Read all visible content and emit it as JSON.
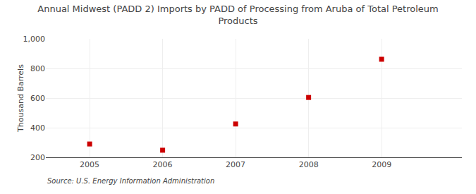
{
  "chart_data": {
    "type": "scatter",
    "title": "Annual Midwest (PADD 2) Imports by PADD of Processing from Aruba of Total Petroleum\nProducts",
    "ylabel": "Thousand Barrels",
    "annotations": [
      "Source: U.S. Energy Information Administration"
    ],
    "x": [
      2005,
      2006,
      2007,
      2008,
      2009
    ],
    "values": [
      290,
      248,
      425,
      604,
      862
    ],
    "color": "#cc0000",
    "marker": "square",
    "xlim": [
      2004.4,
      2010.1
    ],
    "xticks": [
      2005,
      2006,
      2007,
      2008,
      2009
    ],
    "ylim": [
      200,
      1000
    ],
    "yticks": [
      200,
      400,
      600,
      800,
      {
        "value": 1000,
        "label": "1,000"
      }
    ],
    "grid": true
  }
}
